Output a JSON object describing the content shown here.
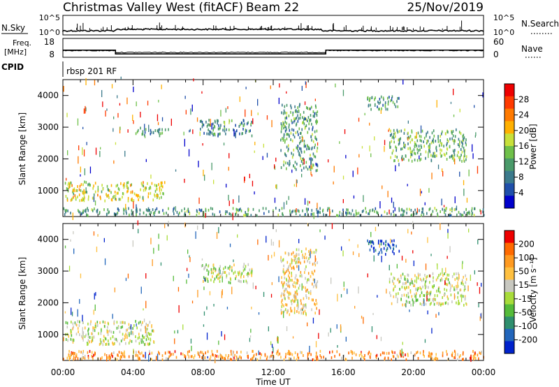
{
  "header": {
    "station": "Christmas Valley West (fitACF)",
    "beam": "Beam 22",
    "date": "25/Nov/2019"
  },
  "strips": {
    "nsky_label": "N.Sky",
    "nsky_ticks": [
      "10^5",
      "10^0"
    ],
    "nsearch_label": "N.Search",
    "nsearch_ticks": [
      "10^5",
      "10^0"
    ],
    "freq_label": "Freq.",
    "freq_unit": "[MHz]",
    "freq_ticks": [
      "18",
      "8"
    ],
    "nave_label": "Nave",
    "nave_ticks": [
      "60",
      "0"
    ],
    "cpid_label": "CPID",
    "cpid_value": "rbsp 201 RF",
    "freq_steps": [
      {
        "t": 0,
        "v": 11.8
      },
      {
        "t": 3.0,
        "v": 9.8
      },
      {
        "t": 15.0,
        "v": 11.8
      },
      {
        "t": 24,
        "v": 11.8
      }
    ]
  },
  "colors": {
    "power_scale": [
      "#0000cc",
      "#1f4faa",
      "#3b7a8c",
      "#4a9a6a",
      "#6fc04a",
      "#c8e03a",
      "#ffb000",
      "#ff7a00",
      "#ff3a00",
      "#ee0000"
    ],
    "velocity_scale": [
      "#0022cc",
      "#2266bb",
      "#2f8f6e",
      "#55bb3a",
      "#a8dc3a",
      "#c8c8c0",
      "#ffc040",
      "#ff9a20",
      "#ff6a00",
      "#ee0000"
    ]
  },
  "chart_data": [
    {
      "type": "heatmap",
      "title": "Power",
      "xlabel": "",
      "ylabel": "Slant Range [km]",
      "x_range": [
        "00:00",
        "24:00"
      ],
      "ylim": [
        180,
        4500
      ],
      "x_ticks": [
        "00:00",
        "04:00",
        "08:00",
        "12:00",
        "16:00",
        "20:00",
        "00:00"
      ],
      "y_ticks": [
        "1000",
        "2000",
        "3000",
        "4000"
      ],
      "colorbar_label": "Power [dB]",
      "colorbar_ticks": [
        "28",
        "24",
        "20",
        "16",
        "12",
        "8",
        "4"
      ],
      "colorbar_range": [
        0,
        32
      ],
      "regions": [
        {
          "t0": 0.1,
          "t1": 5.8,
          "r0": 650,
          "r1": 1250,
          "level": 0.55
        },
        {
          "t0": 4.0,
          "t1": 6.0,
          "r0": 2700,
          "r1": 2950,
          "level": 0.3
        },
        {
          "t0": 7.8,
          "t1": 10.8,
          "r0": 2700,
          "r1": 3200,
          "level": 0.3
        },
        {
          "t0": 12.4,
          "t1": 14.5,
          "r0": 1600,
          "r1": 3700,
          "level": 0.35
        },
        {
          "t0": 17.3,
          "t1": 19.2,
          "r0": 3500,
          "r1": 3950,
          "level": 0.3
        },
        {
          "t0": 18.6,
          "t1": 23.0,
          "r0": 1900,
          "r1": 2900,
          "level": 0.4
        },
        {
          "t0": 0,
          "t1": 24,
          "r0": 180,
          "r1": 420,
          "level": 0.35
        }
      ]
    },
    {
      "type": "heatmap",
      "title": "Velocity",
      "xlabel": "Time UT",
      "ylabel": "Slant Range [km]",
      "x_range": [
        "00:00",
        "24:00"
      ],
      "ylim": [
        180,
        4500
      ],
      "x_ticks": [
        "00:00",
        "04:00",
        "08:00",
        "12:00",
        "16:00",
        "20:00",
        "00:00"
      ],
      "y_ticks": [
        "1000",
        "2000",
        "3000",
        "4000"
      ],
      "colorbar_label": "Velocity [m s⁻¹]",
      "colorbar_ticks": [
        "200",
        "100",
        "50",
        "15",
        "-15",
        "-50",
        "-100",
        "-200"
      ],
      "colorbar_range": [
        -250,
        250
      ],
      "regions": [
        {
          "t0": 0.1,
          "t1": 5.2,
          "r0": 650,
          "r1": 1400,
          "level": 0.5
        },
        {
          "t0": 7.8,
          "t1": 10.8,
          "r0": 2600,
          "r1": 3200,
          "level": 0.5
        },
        {
          "t0": 12.4,
          "t1": 14.5,
          "r0": 1600,
          "r1": 3700,
          "level": 0.62
        },
        {
          "t0": 17.3,
          "t1": 19.2,
          "r0": 3500,
          "r1": 3950,
          "level": 0.1
        },
        {
          "t0": 18.6,
          "t1": 23.0,
          "r0": 1900,
          "r1": 2900,
          "level": 0.5
        },
        {
          "t0": 0,
          "t1": 24,
          "r0": 180,
          "r1": 450,
          "level": 0.75
        }
      ]
    }
  ]
}
